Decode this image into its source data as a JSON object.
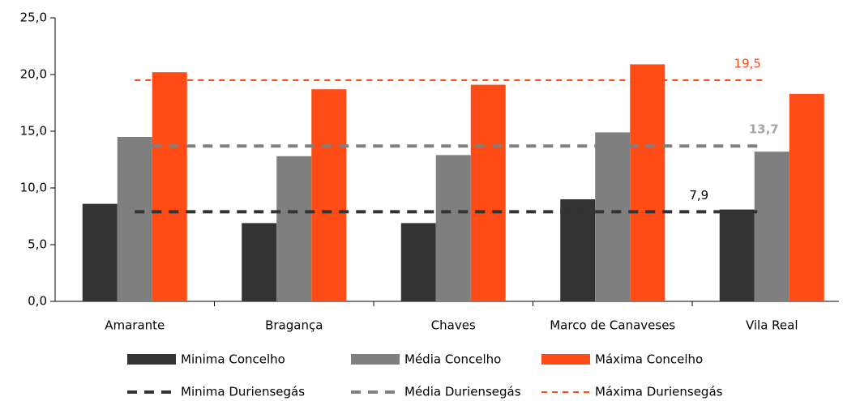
{
  "chart_data": {
    "type": "bar",
    "categories": [
      "Amarante",
      "Bragança",
      "Chaves",
      "Marco de Canaveses",
      "Vila Real"
    ],
    "series": [
      {
        "name": "Minima Concelho",
        "color": "#333333",
        "values": [
          8.6,
          6.9,
          6.9,
          9.0,
          8.1
        ]
      },
      {
        "name": "Média Concelho",
        "color": "#7f7f7f",
        "values": [
          14.5,
          12.8,
          12.9,
          14.9,
          13.2
        ]
      },
      {
        "name": "Máxima Concelho",
        "color": "#ff4b16",
        "values": [
          20.2,
          18.7,
          19.1,
          20.9,
          18.3
        ]
      }
    ],
    "lines": [
      {
        "name": "Minima Duriensegás",
        "color": "#333333",
        "value": 7.9,
        "value_label": "7,9"
      },
      {
        "name": "Média Duriensegás",
        "color": "#7f7f7f",
        "value": 13.7,
        "value_label": "13,7"
      },
      {
        "name": "Máxima Duriensegás",
        "color": "#ff4b16",
        "value": 19.5,
        "value_label": "19,5"
      }
    ],
    "ylim": [
      0,
      25
    ],
    "yticks": [
      {
        "value": 0,
        "label": "0,0"
      },
      {
        "value": 5,
        "label": "5,0"
      },
      {
        "value": 10,
        "label": "10,0"
      },
      {
        "value": 15,
        "label": "15,0"
      },
      {
        "value": 20,
        "label": "20,0"
      },
      {
        "value": 25,
        "label": "25,0"
      }
    ],
    "grid": false,
    "legend": "bottom"
  }
}
